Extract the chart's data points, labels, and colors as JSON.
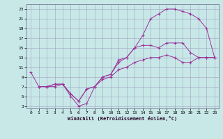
{
  "xlabel": "Windchill (Refroidissement éolien,°C)",
  "line_color": "#993399",
  "background_color": "#c8e8e8",
  "grid_color": "#a0a0c0",
  "xlim": [
    -0.5,
    23.5
  ],
  "ylim": [
    2.5,
    24
  ],
  "xticks": [
    0,
    1,
    2,
    3,
    4,
    5,
    6,
    7,
    8,
    9,
    10,
    11,
    12,
    13,
    14,
    15,
    16,
    17,
    18,
    19,
    20,
    21,
    22,
    23
  ],
  "yticks": [
    3,
    5,
    7,
    9,
    11,
    13,
    15,
    17,
    19,
    21,
    23
  ],
  "line1_x": [
    0,
    1,
    2,
    3,
    4,
    5,
    6,
    7,
    8,
    9,
    10,
    11,
    12,
    13,
    14,
    15,
    16,
    17,
    18,
    19,
    20,
    21,
    22,
    23
  ],
  "line1_y": [
    10,
    7,
    7,
    7,
    7.5,
    5,
    3,
    3.5,
    7,
    9,
    9.5,
    12,
    13,
    15,
    17.5,
    21,
    22,
    23,
    23,
    22.5,
    22,
    21,
    19,
    13
  ],
  "line2_x": [
    1,
    2,
    3,
    4,
    5,
    6,
    7,
    8,
    9,
    10,
    11,
    12,
    13,
    14,
    15,
    16,
    17,
    18,
    19,
    20,
    21,
    22,
    23
  ],
  "line2_y": [
    7,
    7,
    7.5,
    7.5,
    5.5,
    4,
    6.5,
    7,
    9,
    9.5,
    12.5,
    13,
    15,
    15.5,
    15.5,
    15,
    16,
    16,
    16,
    14,
    13,
    13,
    13
  ],
  "line3_x": [
    1,
    2,
    3,
    4,
    5,
    6,
    7,
    8,
    9,
    10,
    11,
    12,
    13,
    14,
    15,
    16,
    17,
    18,
    19,
    20,
    21,
    22,
    23
  ],
  "line3_y": [
    7,
    7,
    7.5,
    7.5,
    5.5,
    4,
    6.5,
    7,
    8.5,
    9,
    10.5,
    11,
    12,
    12.5,
    13,
    13,
    13.5,
    13,
    12,
    12,
    13,
    13,
    13
  ]
}
